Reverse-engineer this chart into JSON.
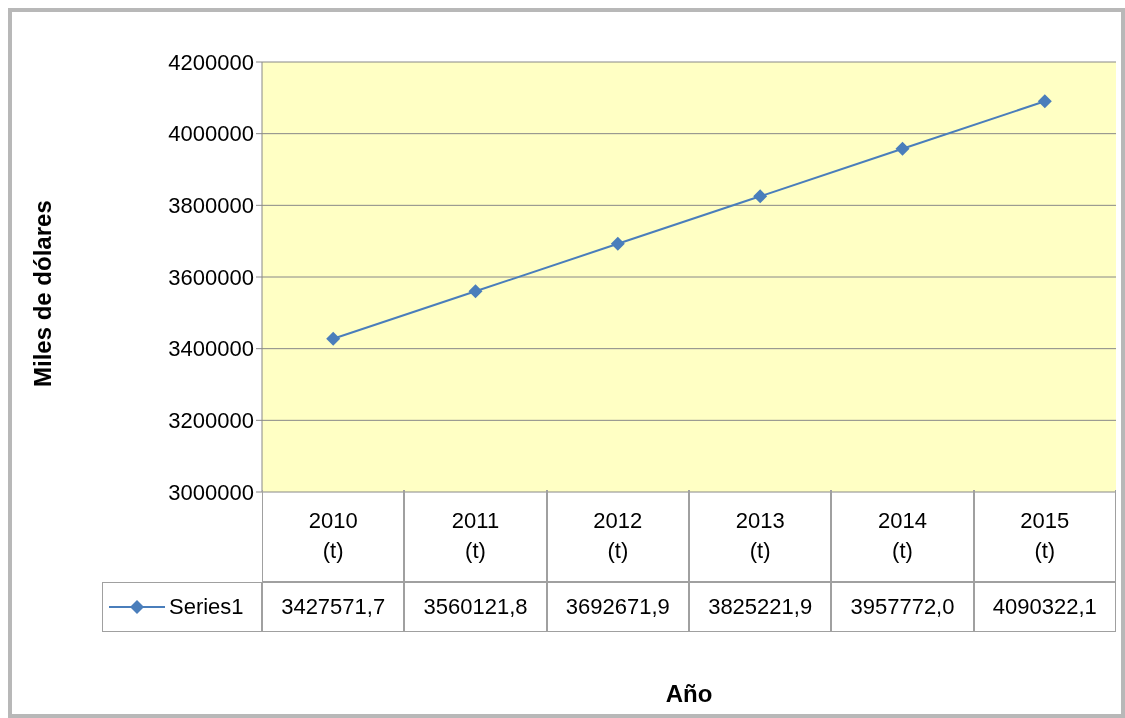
{
  "chart_data": {
    "type": "line",
    "xlabel": "Año",
    "ylabel": "Miles de dólares",
    "categories": [
      "2010\n(t)",
      "2011\n(t)",
      "2012\n(t)",
      "2013\n(t)",
      "2014\n(t)",
      "2015\n(t)"
    ],
    "series": [
      {
        "name": "Series1",
        "color": "#4a7ebb",
        "values": [
          3427571.7,
          3560121.8,
          3692671.9,
          3825221.9,
          3957772.0,
          4090322.1
        ],
        "value_labels": [
          "3427571,7",
          "3560121,8",
          "3692671,9",
          "3825221,9",
          "3957772,0",
          "4090322,1"
        ]
      }
    ],
    "ylim": [
      3000000,
      4200000
    ],
    "yticks": [
      3000000,
      3200000,
      3400000,
      3600000,
      3800000,
      4000000,
      4200000
    ],
    "grid": "y",
    "legend": "bottom",
    "marker": "diamond",
    "line_style": "solid"
  }
}
